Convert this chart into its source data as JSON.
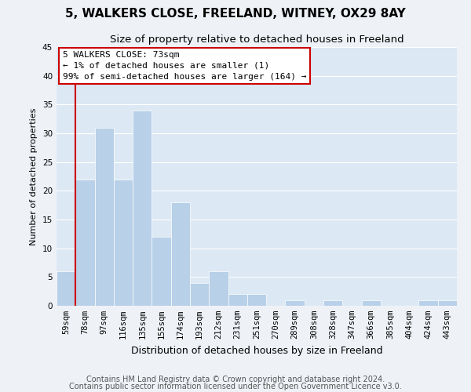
{
  "title": "5, WALKERS CLOSE, FREELAND, WITNEY, OX29 8AY",
  "subtitle": "Size of property relative to detached houses in Freeland",
  "xlabel": "Distribution of detached houses by size in Freeland",
  "ylabel": "Number of detached properties",
  "bar_labels": [
    "59sqm",
    "78sqm",
    "97sqm",
    "116sqm",
    "135sqm",
    "155sqm",
    "174sqm",
    "193sqm",
    "212sqm",
    "231sqm",
    "251sqm",
    "270sqm",
    "289sqm",
    "308sqm",
    "328sqm",
    "347sqm",
    "366sqm",
    "385sqm",
    "404sqm",
    "424sqm",
    "443sqm"
  ],
  "bar_values": [
    6,
    22,
    31,
    22,
    34,
    12,
    18,
    4,
    6,
    2,
    2,
    0,
    1,
    0,
    1,
    0,
    1,
    0,
    0,
    1,
    1
  ],
  "bar_color": "#b8d0e8",
  "annotation_title": "5 WALKERS CLOSE: 73sqm",
  "annotation_line1": "← 1% of detached houses are smaller (1)",
  "annotation_line2": "99% of semi-detached houses are larger (164) →",
  "annotation_box_facecolor": "#ffffff",
  "annotation_box_edgecolor": "#cc0000",
  "red_line_color": "#cc0000",
  "ylim": [
    0,
    45
  ],
  "yticks": [
    0,
    5,
    10,
    15,
    20,
    25,
    30,
    35,
    40,
    45
  ],
  "footer_line1": "Contains HM Land Registry data © Crown copyright and database right 2024.",
  "footer_line2": "Contains public sector information licensed under the Open Government Licence v3.0.",
  "bg_color": "#eef2f7",
  "plot_bg_color": "#dce8f4",
  "grid_color": "#ffffff",
  "title_fontsize": 11,
  "subtitle_fontsize": 9.5,
  "xlabel_fontsize": 9,
  "ylabel_fontsize": 8,
  "tick_fontsize": 7.5,
  "annotation_fontsize": 8,
  "footer_fontsize": 7
}
